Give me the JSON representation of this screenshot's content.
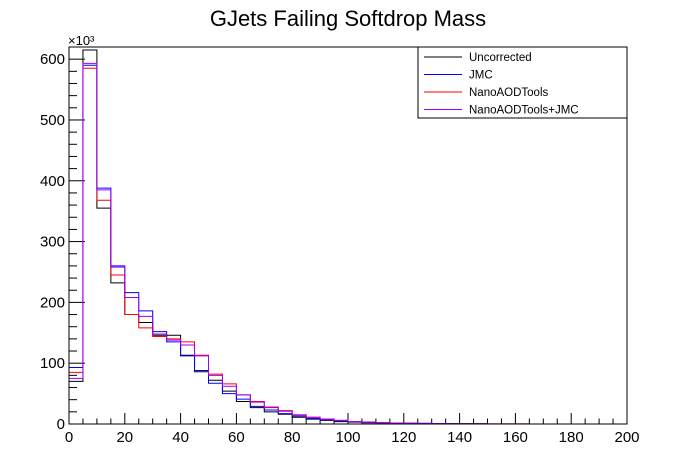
{
  "chart_data": {
    "type": "line",
    "title": "GJets Failing Softdrop Mass",
    "xlabel": "",
    "ylabel": "",
    "y_multiplier_label": "×10³",
    "xlim": [
      0,
      200
    ],
    "ylim": [
      0,
      620
    ],
    "x_ticks": [
      0,
      20,
      40,
      60,
      80,
      100,
      120,
      140,
      160,
      180,
      200
    ],
    "y_ticks": [
      0,
      100,
      200,
      300,
      400,
      500,
      600
    ],
    "bin_edges": [
      0,
      5,
      10,
      15,
      20,
      25,
      30,
      35,
      40,
      45,
      50,
      55,
      60,
      65,
      70,
      75,
      80,
      85,
      90,
      95,
      100,
      105,
      110,
      115,
      120,
      125,
      130,
      135,
      140,
      145,
      150,
      155,
      160,
      165,
      170,
      175,
      180,
      185,
      190,
      195,
      200
    ],
    "legend_position": "top-right",
    "series": [
      {
        "name": "Uncorrected",
        "color": "#000000",
        "values": [
          70,
          615,
          355,
          232,
          180,
          167,
          146,
          146,
          113,
          86,
          72,
          54,
          37,
          27,
          20,
          16,
          11,
          8,
          6,
          4,
          3,
          2,
          1.5,
          1.2,
          1,
          0.8,
          0.6,
          0.5,
          0.4,
          0.3,
          0,
          0,
          0,
          0,
          0,
          0,
          0,
          0,
          0,
          0
        ]
      },
      {
        "name": "JMC",
        "color": "#0000ff",
        "values": [
          93,
          590,
          388,
          260,
          216,
          186,
          152,
          135,
          112,
          88,
          67,
          50,
          41,
          29,
          23,
          17,
          13,
          9,
          7,
          5,
          4,
          3,
          2,
          1.5,
          1.2,
          1,
          0.8,
          0.6,
          0.5,
          0.4,
          0,
          0,
          0,
          0,
          0,
          0,
          0,
          0,
          0,
          0
        ]
      },
      {
        "name": "NanoAODTools",
        "color": "#ff0000",
        "values": [
          85,
          585,
          368,
          245,
          180,
          158,
          144,
          140,
          135,
          113,
          82,
          66,
          48,
          37,
          28,
          22,
          15,
          11,
          8,
          6,
          4,
          3,
          2,
          1.5,
          1.2,
          1,
          0.8,
          0.6,
          0.5,
          0.4,
          0.3,
          0.2,
          0.2,
          0.1,
          0.1,
          0.1,
          0.1,
          0.1,
          0.1,
          0.1
        ]
      },
      {
        "name": "NanoAODTools+JMC",
        "color": "#9900ff",
        "values": [
          75,
          593,
          385,
          258,
          208,
          177,
          148,
          138,
          130,
          112,
          80,
          62,
          48,
          36,
          27,
          21,
          15,
          11,
          8,
          6,
          4,
          3,
          2,
          1.5,
          1.2,
          1,
          0.8,
          0.6,
          0.5,
          0.4,
          0.3,
          0.2,
          0.2,
          0.1,
          0.1,
          0.1,
          0.1,
          0.1,
          0.1,
          0.1
        ]
      }
    ]
  }
}
